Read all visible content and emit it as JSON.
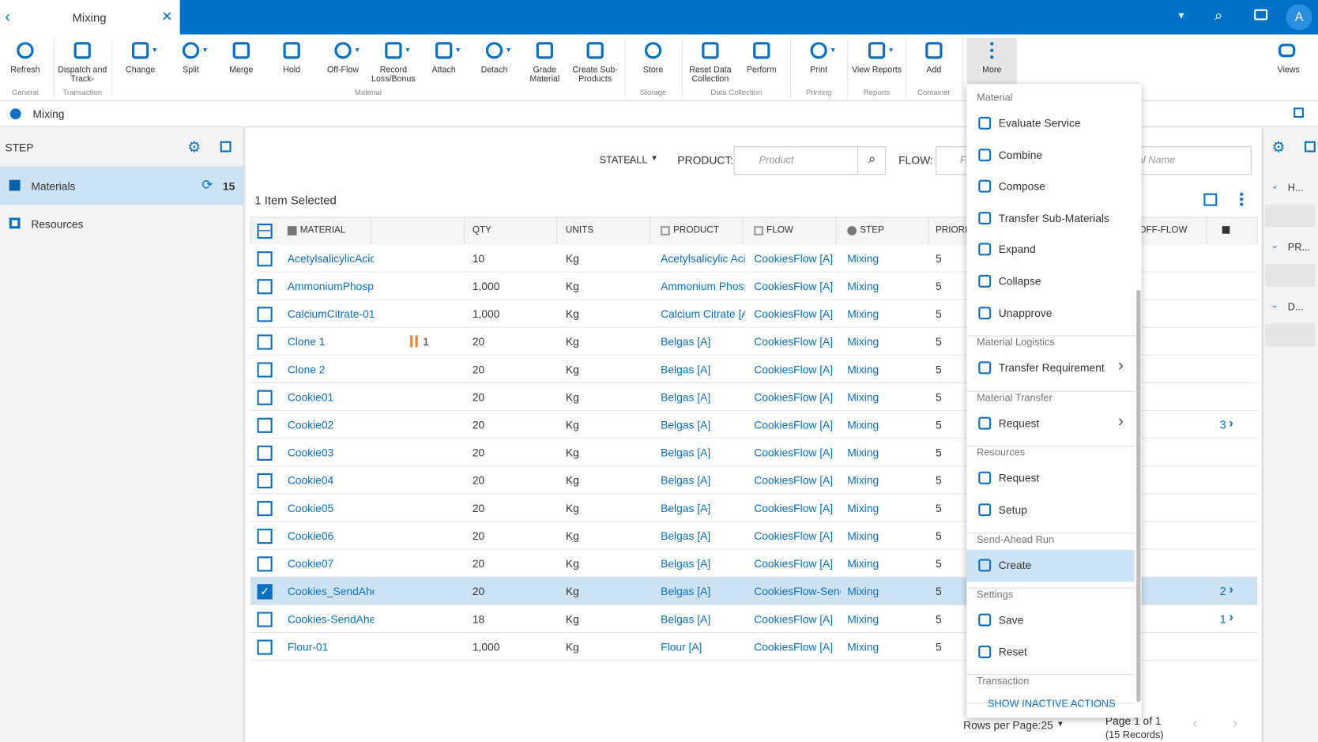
{
  "tab": {
    "title": "Mixing"
  },
  "user": {
    "initial": "A"
  },
  "toolbar": {
    "buttons": [
      "Refresh",
      "Dispatch and Track-",
      "Change",
      "Split",
      "Merge",
      "Hold",
      "Off-Flow",
      "Record Loss/Bonus",
      "Attach",
      "Detach",
      "Grade Material",
      "Create Sub-Products",
      "Store",
      "Reset Data Collection",
      "Perform",
      "Print",
      "View Reports",
      "Add",
      "More"
    ],
    "groups": [
      "General",
      "Transaction",
      "Material",
      "Storage",
      "Data Collection",
      "Printing",
      "Reports",
      "Container"
    ],
    "views": "Views"
  },
  "breadcrumb": "Mixing",
  "sidebar": {
    "title": "STEP",
    "items": [
      {
        "label": "Materials",
        "count": "15"
      },
      {
        "label": "Resources"
      }
    ]
  },
  "filters": {
    "state_label": "STATE:",
    "state_value": "ALL",
    "product_label": "PRODUCT:",
    "product_placeholder": "Product",
    "flow_label": "FLOW:",
    "flow_placeholder": "Flow",
    "material_placeholder": "Material Name"
  },
  "selection": "1 Item Selected",
  "table": {
    "columns": [
      "MATERIAL",
      "QTY",
      "UNITS",
      "PRODUCT",
      "FLOW",
      "STEP",
      "PRIORITY",
      "OFF-FLOW"
    ],
    "rows": [
      {
        "material": "AcetylsalicylicAcid",
        "qty": "10",
        "units": "Kg",
        "product": "Acetylsalicylic Acid [A]",
        "flow": "CookiesFlow [A]",
        "step": "Mixing",
        "priority": "5"
      },
      {
        "material": "AmmoniumPhosphate",
        "qty": "1,000",
        "units": "Kg",
        "product": "Ammonium Phosphate [A]",
        "flow": "CookiesFlow [A]",
        "step": "Mixing",
        "priority": "5"
      },
      {
        "material": "CalciumCitrate-01",
        "qty": "1,000",
        "units": "Kg",
        "product": "Calcium Citrate [A]",
        "flow": "CookiesFlow [A]",
        "step": "Mixing",
        "priority": "5"
      },
      {
        "material": "Clone 1",
        "hold": "1",
        "qty": "20",
        "units": "Kg",
        "product": "Belgas [A]",
        "flow": "CookiesFlow [A]",
        "step": "Mixing",
        "priority": "5"
      },
      {
        "material": "Clone 2",
        "qty": "20",
        "units": "Kg",
        "product": "Belgas [A]",
        "flow": "CookiesFlow [A]",
        "step": "Mixing",
        "priority": "5"
      },
      {
        "material": "Cookie01",
        "qty": "20",
        "units": "Kg",
        "product": "Belgas [A]",
        "flow": "CookiesFlow [A]",
        "step": "Mixing",
        "priority": "5"
      },
      {
        "material": "Cookie02",
        "qty": "20",
        "units": "Kg",
        "product": "Belgas [A]",
        "flow": "CookiesFlow [A]",
        "step": "Mixing",
        "priority": "5",
        "count": "3"
      },
      {
        "material": "Cookie03",
        "qty": "20",
        "units": "Kg",
        "product": "Belgas [A]",
        "flow": "CookiesFlow [A]",
        "step": "Mixing",
        "priority": "5"
      },
      {
        "material": "Cookie04",
        "qty": "20",
        "units": "Kg",
        "product": "Belgas [A]",
        "flow": "CookiesFlow [A]",
        "step": "Mixing",
        "priority": "5"
      },
      {
        "material": "Cookie05",
        "qty": "20",
        "units": "Kg",
        "product": "Belgas [A]",
        "flow": "CookiesFlow [A]",
        "step": "Mixing",
        "priority": "5"
      },
      {
        "material": "Cookie06",
        "qty": "20",
        "units": "Kg",
        "product": "Belgas [A]",
        "flow": "CookiesFlow [A]",
        "step": "Mixing",
        "priority": "5"
      },
      {
        "material": "Cookie07",
        "qty": "20",
        "units": "Kg",
        "product": "Belgas [A]",
        "flow": "CookiesFlow [A]",
        "step": "Mixing",
        "priority": "5"
      },
      {
        "material": "Cookies_SendAhead",
        "qty": "20",
        "units": "Kg",
        "product": "Belgas [A]",
        "flow": "CookiesFlow-SendAhead [A]",
        "step": "Mixing",
        "priority": "5",
        "count": "2",
        "selected": true
      },
      {
        "material": "Cookies-SendAhead",
        "qty": "18",
        "units": "Kg",
        "product": "Belgas [A]",
        "flow": "CookiesFlow [A]",
        "step": "Mixing",
        "priority": "5",
        "count": "1"
      },
      {
        "material": "Flour-01",
        "qty": "1,000",
        "units": "Kg",
        "product": "Flour [A]",
        "flow": "CookiesFlow [A]",
        "step": "Mixing",
        "priority": "5"
      }
    ]
  },
  "menu": {
    "sections": [
      {
        "title": "Material",
        "items": [
          {
            "label": "Evaluate Service"
          },
          {
            "label": "Combine"
          },
          {
            "label": "Compose"
          },
          {
            "label": "Transfer Sub-Materials"
          },
          {
            "label": "Expand"
          },
          {
            "label": "Collapse"
          },
          {
            "label": "Unapprove"
          }
        ]
      },
      {
        "title": "Material Logistics",
        "items": [
          {
            "label": "Transfer Requirement",
            "submenu": true
          }
        ]
      },
      {
        "title": "Material Transfer",
        "items": [
          {
            "label": "Request",
            "submenu": true
          }
        ]
      },
      {
        "title": "Resources",
        "items": [
          {
            "label": "Request"
          },
          {
            "label": "Setup"
          }
        ]
      },
      {
        "title": "Send-Ahead Run",
        "items": [
          {
            "label": "Create",
            "active": true
          }
        ]
      },
      {
        "title": "Settings",
        "items": [
          {
            "label": "Save"
          },
          {
            "label": "Reset"
          }
        ]
      },
      {
        "title": "Transaction",
        "items": []
      }
    ],
    "footer": "SHOW INACTIVE ACTIONS"
  },
  "side_panel": [
    "H...",
    "PR...",
    "D..."
  ],
  "pagination": {
    "rows_per_page": "Rows per Page:25",
    "page": "Page 1 of 1",
    "records": "(15 Records)"
  }
}
